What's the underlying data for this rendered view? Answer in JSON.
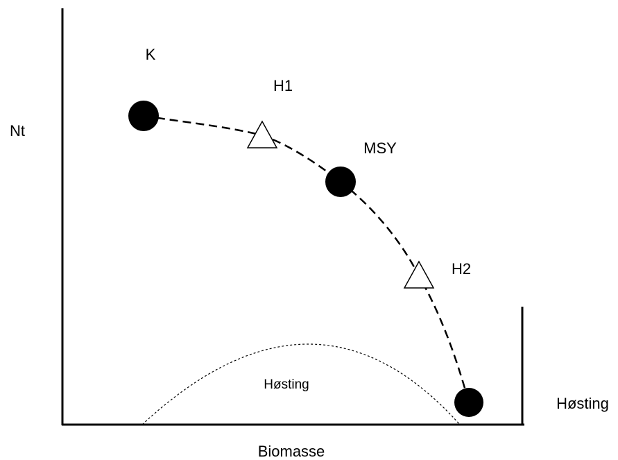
{
  "axes": {
    "y_label": "Nt",
    "x_label": "Biomasse",
    "y2_label": "Høsting"
  },
  "points": [
    {
      "label": "K"
    },
    {
      "label": "H1"
    },
    {
      "label": "MSY"
    },
    {
      "label": "H2"
    }
  ],
  "harvest_label": "Høsting"
}
